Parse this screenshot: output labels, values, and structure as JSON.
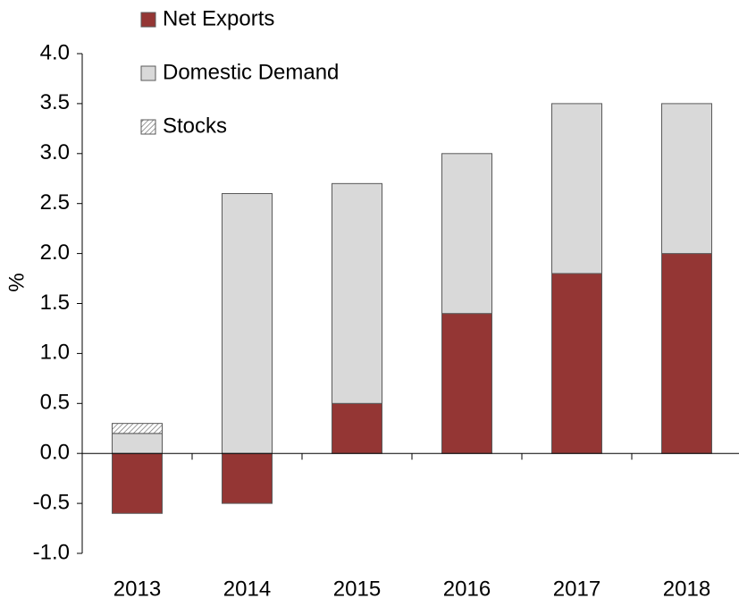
{
  "chart_data": {
    "type": "stacked_bar",
    "y_label": "%",
    "categories": [
      "2013",
      "2014",
      "2015",
      "2016",
      "2017",
      "2018"
    ],
    "series": [
      {
        "name": "Net Exports",
        "color": "#943634",
        "values": [
          -0.6,
          -0.5,
          0.5,
          1.4,
          1.8,
          2.0
        ]
      },
      {
        "name": "Domestic Demand",
        "color": "#d9d9d9",
        "values": [
          0.2,
          2.6,
          2.2,
          1.6,
          1.7,
          1.5
        ]
      },
      {
        "name": "Stocks",
        "color": "#ffffff",
        "hatch": true,
        "values": [
          0.1,
          0,
          0,
          0,
          0,
          0
        ]
      }
    ],
    "ylim": [
      -1.0,
      4.0
    ],
    "yticks": [
      {
        "value": -1.0,
        "label": "-1.0"
      },
      -0.5,
      {
        "value": 0.0,
        "label": "0.0"
      },
      0.5,
      {
        "value": 1.0,
        "label": "1.0"
      },
      1.5,
      {
        "value": 2.0,
        "label": "2.0"
      },
      2.5,
      {
        "value": 3.0,
        "label": "3.0"
      },
      3.5,
      {
        "value": 4.0,
        "label": "4.0"
      }
    ],
    "legend": "top"
  }
}
